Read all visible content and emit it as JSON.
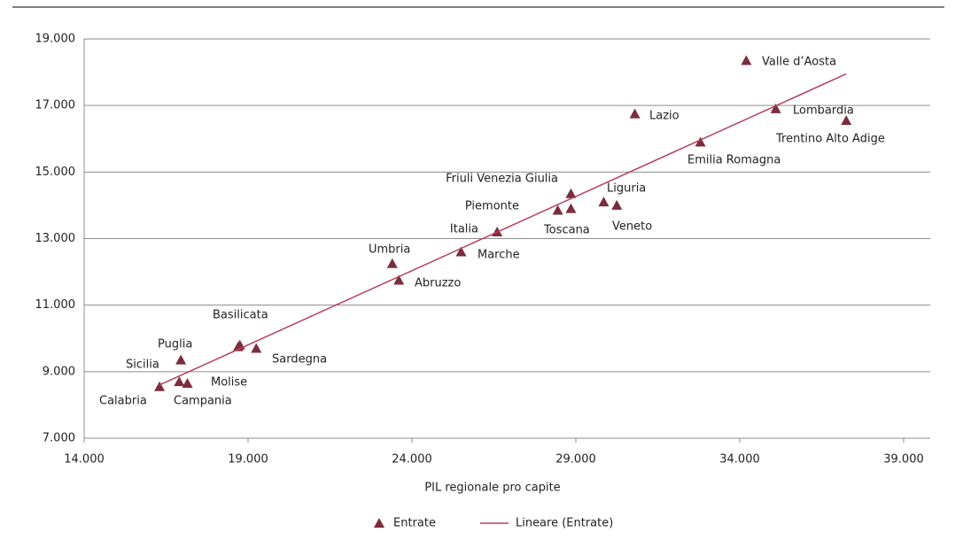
{
  "chart_data": {
    "type": "scatter",
    "x_label": "PIL regionale pro capite",
    "xlim": [
      14000,
      40000
    ],
    "xticks": [
      {
        "value": 14000,
        "label": "14.000"
      },
      {
        "value": 19000,
        "label": "19.000"
      },
      {
        "value": 24000,
        "label": "24.000"
      },
      {
        "value": 29000,
        "label": "29.000"
      },
      {
        "value": 34000,
        "label": "34.000"
      },
      {
        "value": 39000,
        "label": "39.000"
      }
    ],
    "ylim": [
      7000,
      19000
    ],
    "yticks": [
      {
        "value": 7000,
        "label": "7.000"
      },
      {
        "value": 9000,
        "label": "9.000"
      },
      {
        "value": 11000,
        "label": "11.000"
      },
      {
        "value": 13000,
        "label": "13.000"
      },
      {
        "value": 15000,
        "label": "15.000"
      },
      {
        "value": 17000,
        "label": "17.000"
      },
      {
        "value": 19000,
        "label": "19.000"
      }
    ],
    "grid": true,
    "legend": "bottom",
    "series": [
      {
        "name": "Entrate",
        "color": "#7b2c3f",
        "labels": [
          "Valle d’Aosta",
          "Lombardia",
          "Trentino Alto Adige",
          "Lazio",
          "Emilia Romagna",
          "Friuli Venezia Giulia",
          "Liguria",
          "Veneto",
          "Piemonte",
          "Toscana",
          "Italia",
          "Marche",
          "Umbria",
          "Abruzzo",
          "Basilicata",
          "Molise",
          "Sardegna",
          "Puglia",
          "Sicilia",
          "Campania",
          "Calabria"
        ],
        "x": [
          34200,
          35100,
          37250,
          30800,
          32800,
          28850,
          29850,
          30250,
          28450,
          28850,
          26600,
          25500,
          23400,
          23600,
          18750,
          18700,
          19250,
          16950,
          16900,
          17150,
          16300
        ],
        "values": [
          18350,
          16900,
          16550,
          16750,
          15900,
          14350,
          14100,
          14000,
          13850,
          13900,
          13200,
          12600,
          12250,
          11750,
          9800,
          9750,
          9700,
          9350,
          8700,
          8650,
          8550
        ]
      },
      {
        "name": "Lineare (Entrate)",
        "color": "#b5405f",
        "trend": true,
        "x": [
          16300,
          37250
        ],
        "values": [
          8600,
          17950
        ]
      }
    ]
  }
}
